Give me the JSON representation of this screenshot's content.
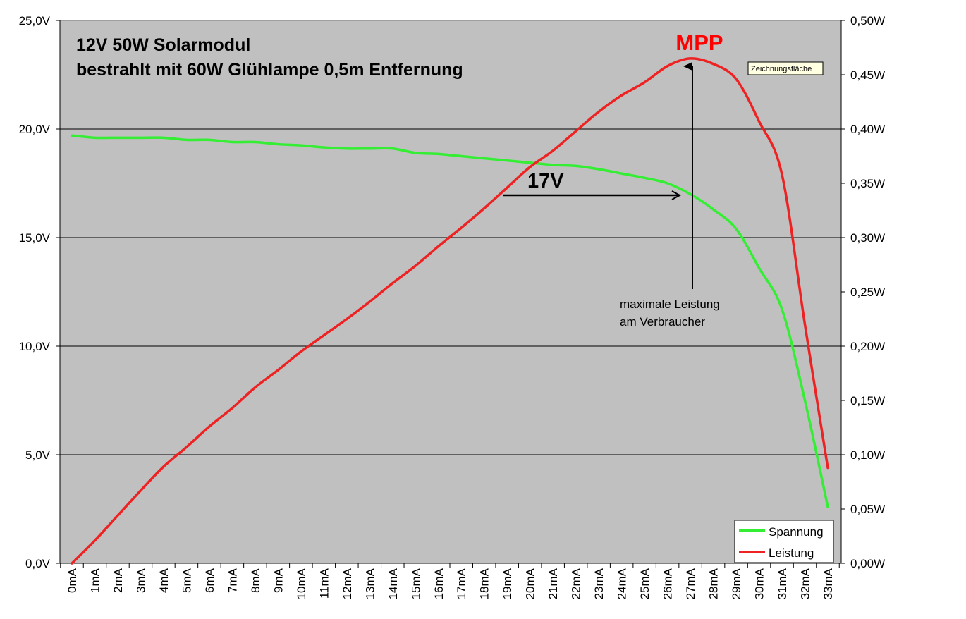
{
  "chart_data": {
    "type": "line",
    "title_line1": "12V 50W Solarmodul",
    "title_line2": "bestrahlt mit 60W Glühlampe 0,5m Entfernung",
    "categories": [
      "0mA",
      "1mA",
      "2mA",
      "3mA",
      "4mA",
      "5mA",
      "6mA",
      "7mA",
      "8mA",
      "9mA",
      "10mA",
      "11mA",
      "12mA",
      "13mA",
      "14mA",
      "15mA",
      "16mA",
      "17mA",
      "18mA",
      "19mA",
      "20mA",
      "21mA",
      "22mA",
      "23mA",
      "24mA",
      "25mA",
      "26mA",
      "27mA",
      "28mA",
      "29mA",
      "30mA",
      "31mA",
      "32mA",
      "33mA"
    ],
    "y_left": {
      "min": 0,
      "max": 25,
      "step": 5,
      "tick_labels": [
        "0,0V",
        "5,0V",
        "10,0V",
        "15,0V",
        "20,0V",
        "25,0V"
      ]
    },
    "y_right": {
      "min": 0,
      "max": 0.5,
      "step": 0.05,
      "tick_labels": [
        "0,00W",
        "0,05W",
        "0,10W",
        "0,15W",
        "0,20W",
        "0,25W",
        "0,30W",
        "0,35W",
        "0,40W",
        "0,45W",
        "0,50W"
      ]
    },
    "grid": "horizontal major lines at left-axis ticks",
    "series": [
      {
        "name": "Spannung",
        "axis": "left",
        "color": "#33ee33",
        "values": [
          19.7,
          19.6,
          19.6,
          19.6,
          19.6,
          19.5,
          19.5,
          19.4,
          19.4,
          19.3,
          19.25,
          19.15,
          19.1,
          19.1,
          19.1,
          18.9,
          18.85,
          18.75,
          18.65,
          18.55,
          18.45,
          18.35,
          18.3,
          18.15,
          17.95,
          17.75,
          17.5,
          17.0,
          16.3,
          15.4,
          13.6,
          11.7,
          7.5,
          2.6
        ]
      },
      {
        "name": "Leistung",
        "axis": "right",
        "color": "#ee2222",
        "values": [
          0.0,
          0.021,
          0.044,
          0.067,
          0.089,
          0.107,
          0.126,
          0.143,
          0.162,
          0.178,
          0.195,
          0.21,
          0.225,
          0.241,
          0.258,
          0.274,
          0.292,
          0.309,
          0.327,
          0.346,
          0.365,
          0.38,
          0.398,
          0.416,
          0.431,
          0.443,
          0.458,
          0.465,
          0.46,
          0.446,
          0.407,
          0.358,
          0.22,
          0.088
        ]
      }
    ],
    "legend": {
      "position": "bottom-right",
      "entries": [
        "Spannung",
        "Leistung"
      ]
    },
    "annotations": {
      "mpp": "MPP",
      "voltage_label": "17V",
      "note_line1": "maximale Leistung",
      "note_line2": "am Verbraucher",
      "tooltip": "Zeichnungsfläche"
    }
  }
}
